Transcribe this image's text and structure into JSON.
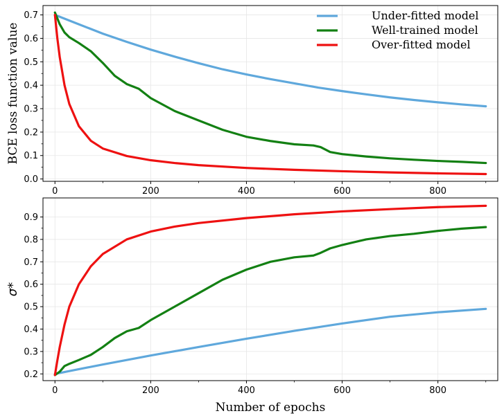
{
  "chart_data": [
    {
      "type": "line",
      "ylabel": "BCE loss function value",
      "xlabel": "",
      "xlim": [
        -25,
        925
      ],
      "ylim": [
        -0.01,
        0.74
      ],
      "xticks": [
        0,
        200,
        400,
        600,
        800
      ],
      "yticks": [
        0.0,
        0.1,
        0.2,
        0.3,
        0.4,
        0.5,
        0.6,
        0.7
      ],
      "ytick_labels": [
        "0.0",
        "0.1",
        "0.2",
        "0.3",
        "0.4",
        "0.5",
        "0.6",
        "0.7"
      ],
      "xtick_labels": [
        "0",
        "200",
        "400",
        "600",
        "800"
      ],
      "grid": true,
      "legend": "top-right",
      "series": [
        {
          "name": "Under-fitted model",
          "color": "#5fa8dc",
          "x": [
            0,
            50,
            100,
            150,
            200,
            250,
            300,
            350,
            400,
            450,
            500,
            550,
            600,
            650,
            700,
            750,
            800,
            850,
            900
          ],
          "y": [
            0.7,
            0.66,
            0.62,
            0.585,
            0.552,
            0.522,
            0.494,
            0.468,
            0.446,
            0.426,
            0.408,
            0.39,
            0.375,
            0.361,
            0.348,
            0.337,
            0.327,
            0.318,
            0.31
          ]
        },
        {
          "name": "Well-trained model",
          "color": "#138013",
          "x": [
            0,
            10,
            20,
            30,
            50,
            75,
            100,
            125,
            150,
            175,
            200,
            250,
            300,
            350,
            400,
            450,
            500,
            540,
            555,
            575,
            600,
            650,
            700,
            750,
            800,
            850,
            900
          ],
          "y": [
            0.71,
            0.66,
            0.625,
            0.605,
            0.58,
            0.545,
            0.495,
            0.44,
            0.405,
            0.385,
            0.345,
            0.29,
            0.25,
            0.21,
            0.18,
            0.162,
            0.148,
            0.143,
            0.136,
            0.115,
            0.106,
            0.096,
            0.088,
            0.082,
            0.077,
            0.073,
            0.068
          ]
        },
        {
          "name": "Over-fitted model",
          "color": "#ee1111",
          "x": [
            0,
            5,
            10,
            20,
            30,
            50,
            75,
            100,
            150,
            200,
            250,
            300,
            400,
            500,
            600,
            700,
            800,
            900
          ],
          "y": [
            0.7,
            0.6,
            0.52,
            0.4,
            0.32,
            0.225,
            0.163,
            0.13,
            0.098,
            0.08,
            0.068,
            0.059,
            0.047,
            0.039,
            0.033,
            0.028,
            0.024,
            0.021
          ]
        }
      ]
    },
    {
      "type": "line",
      "ylabel": "σ*",
      "xlabel": "Number of epochs",
      "xlim": [
        -25,
        925
      ],
      "ylim": [
        0.17,
        0.985
      ],
      "xticks": [
        0,
        200,
        400,
        600,
        800
      ],
      "yticks": [
        0.2,
        0.3,
        0.4,
        0.5,
        0.6,
        0.7,
        0.8,
        0.9
      ],
      "ytick_labels": [
        "0.2",
        "0.3",
        "0.4",
        "0.5",
        "0.6",
        "0.7",
        "0.8",
        "0.9"
      ],
      "xtick_labels": [
        "0",
        "200",
        "400",
        "600",
        "800"
      ],
      "grid": true,
      "series": [
        {
          "name": "Under-fitted model",
          "color": "#5fa8dc",
          "x": [
            0,
            100,
            200,
            300,
            400,
            500,
            600,
            700,
            800,
            900
          ],
          "y": [
            0.2,
            0.242,
            0.282,
            0.32,
            0.357,
            0.392,
            0.425,
            0.455,
            0.475,
            0.49
          ]
        },
        {
          "name": "Well-trained model",
          "color": "#138013",
          "x": [
            0,
            10,
            20,
            30,
            50,
            75,
            100,
            125,
            150,
            175,
            200,
            250,
            300,
            350,
            400,
            450,
            500,
            540,
            555,
            575,
            600,
            650,
            700,
            750,
            800,
            850,
            900
          ],
          "y": [
            0.195,
            0.21,
            0.235,
            0.245,
            0.262,
            0.285,
            0.32,
            0.36,
            0.39,
            0.405,
            0.44,
            0.5,
            0.56,
            0.62,
            0.665,
            0.7,
            0.72,
            0.728,
            0.74,
            0.76,
            0.775,
            0.8,
            0.815,
            0.825,
            0.838,
            0.848,
            0.855
          ]
        },
        {
          "name": "Over-fitted model",
          "color": "#ee1111",
          "x": [
            0,
            5,
            10,
            20,
            30,
            50,
            75,
            100,
            150,
            200,
            250,
            300,
            400,
            500,
            600,
            700,
            800,
            900
          ],
          "y": [
            0.195,
            0.26,
            0.32,
            0.42,
            0.5,
            0.6,
            0.68,
            0.735,
            0.8,
            0.835,
            0.857,
            0.873,
            0.895,
            0.912,
            0.925,
            0.935,
            0.944,
            0.95
          ]
        }
      ]
    }
  ]
}
